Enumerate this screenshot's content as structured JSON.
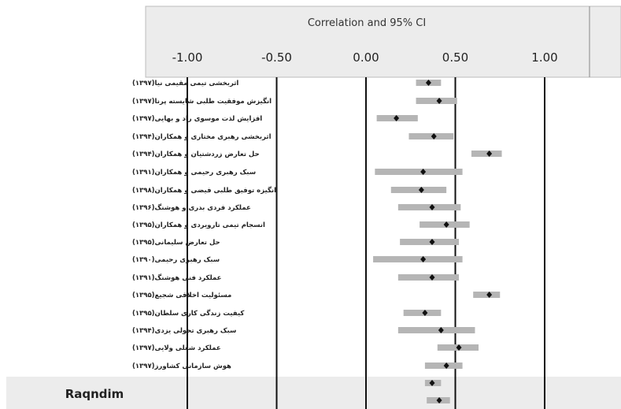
{
  "chart_data": {
    "type": "forest",
    "title": "Correlation and 95% CI",
    "x_ticks": [
      "-1.00",
      "-0.50",
      "0.00",
      "0.50",
      "1.00"
    ],
    "xlim": [
      -1.0,
      1.0
    ],
    "studies": [
      {
        "label": "اثربخشی تیمی     مقیمی نیا(۱۳۹۷)",
        "estimate": 0.35,
        "lower": 0.28,
        "upper": 0.42
      },
      {
        "label": "انگیزش موفقیت طلبی شایسته پرنا(۱۳۹۷)",
        "estimate": 0.41,
        "lower": 0.28,
        "upper": 0.51
      },
      {
        "label": "افزایش لذت     موسوی راد و بهایی(۱۳۹۷)",
        "estimate": 0.17,
        "lower": 0.06,
        "upper": 0.29
      },
      {
        "label": "اثربخشی رهبری     مختاری و همکاران(۱۳۹۴)",
        "estimate": 0.38,
        "lower": 0.24,
        "upper": 0.49
      },
      {
        "label": "حل تعارض     زردشتیان و همکاران(۱۳۹۴)",
        "estimate": 0.69,
        "lower": 0.59,
        "upper": 0.76
      },
      {
        "label": "سبک رهبری     رحیمی و همکاران(۱۳۹۱)",
        "estimate": 0.32,
        "lower": 0.05,
        "upper": 0.54
      },
      {
        "label": "انگیزه توفیق طلبی     فیضی و همکاران(۱۳۹۸)",
        "estimate": 0.31,
        "lower": 0.14,
        "upper": 0.45
      },
      {
        "label": "عملکرد فردی     بدری و هوشنگ(۱۳۹۶)",
        "estimate": 0.37,
        "lower": 0.18,
        "upper": 0.53
      },
      {
        "label": "انسجام تیمی     تارویردی و همکاران(۱۳۹۵)",
        "estimate": 0.45,
        "lower": 0.3,
        "upper": 0.58
      },
      {
        "label": "حل تعارض     سلیمانی(۱۳۹۵)",
        "estimate": 0.37,
        "lower": 0.19,
        "upper": 0.52
      },
      {
        "label": "سبک رهبری     رحیمی(۱۳۹۰)",
        "estimate": 0.32,
        "lower": 0.04,
        "upper": 0.54
      },
      {
        "label": "عملکرد فنی     هوشنگ(۱۳۹۱)",
        "estimate": 0.37,
        "lower": 0.18,
        "upper": 0.52
      },
      {
        "label": "مسئولیت اخلاقی     شجیع(۱۳۹۵)",
        "estimate": 0.69,
        "lower": 0.6,
        "upper": 0.75
      },
      {
        "label": "کیفیت زندگی کاری     سلطان(۱۳۹۵)",
        "estimate": 0.33,
        "lower": 0.21,
        "upper": 0.42
      },
      {
        "label": "سبک رهبری تحولی     یزدی(۱۳۹۴)",
        "estimate": 0.42,
        "lower": 0.18,
        "upper": 0.61
      },
      {
        "label": "عملکرد شغلی     ولایی(۱۳۹۷)",
        "estimate": 0.52,
        "lower": 0.4,
        "upper": 0.63
      },
      {
        "label": "هوش سازمانی     کشاورز(۱۳۹۷)",
        "estimate": 0.45,
        "lower": 0.33,
        "upper": 0.54
      },
      {
        "label": "",
        "estimate": 0.37,
        "lower": 0.33,
        "upper": 0.42
      },
      {
        "label": "",
        "estimate": 0.41,
        "lower": 0.34,
        "upper": 0.47
      }
    ],
    "footer_label": "Raqndim"
  }
}
